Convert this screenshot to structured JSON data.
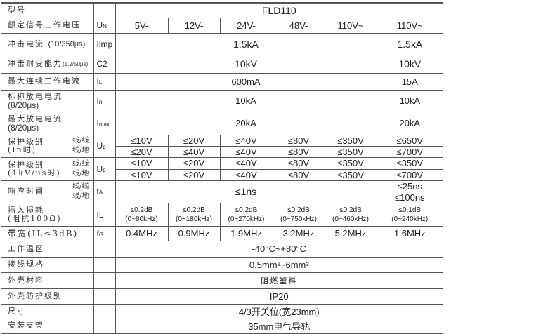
{
  "model": {
    "label": "型号",
    "value": "FLD110"
  },
  "un": {
    "label": "额定信号工作电压",
    "sym": "U",
    "sub": "N",
    "values": [
      "5V-",
      "12V-",
      "24V-",
      "48V-",
      "110V~",
      "110V~"
    ]
  },
  "iimp": {
    "label": "冲击电流",
    "cond": "(10/350μs)",
    "sym": "Iimp",
    "values": [
      "1.5kA",
      "1.5kA"
    ]
  },
  "c2": {
    "label": "冲击耐受能力",
    "cond": "(1.2/50μs)",
    "sym": "C2",
    "values": [
      "10kV",
      "10kV"
    ]
  },
  "il": {
    "label": "最大连续工作电流",
    "sym": "I",
    "sub": "L",
    "values": [
      "600mA",
      "15A"
    ]
  },
  "in": {
    "label": "标称放电电流",
    "cond": "(8/20μs)",
    "sym": "I",
    "sub": "n",
    "values": [
      "10kA",
      "10kA"
    ]
  },
  "imax": {
    "label": "最大放电电流",
    "cond": "(8/20μs)",
    "sym": "I",
    "sub": "max",
    "values": [
      "20kA",
      "20kA"
    ]
  },
  "up1": {
    "label": "保护级别",
    "cond": "(In时)",
    "side": [
      "线/线",
      "线/地"
    ],
    "sym": "U",
    "sub": "p",
    "ll": [
      "≤10V",
      "≤20V",
      "≤40V",
      "≤80V",
      "≤350V",
      "≤650V"
    ],
    "lg": [
      "≤20V",
      "≤40V",
      "≤40V",
      "≤80V",
      "≤350V",
      "≤700V"
    ]
  },
  "up2": {
    "label": "保护级别",
    "cond": "(1kV/μs时)",
    "side": [
      "线/线",
      "线/地"
    ],
    "sym": "U",
    "sub": "p",
    "ll": [
      "≤10V",
      "≤20V",
      "≤40V",
      "≤80V",
      "≤350V",
      "≤350V"
    ],
    "lg": [
      "≤10V",
      "≤20V",
      "≤40V",
      "≤80V",
      "≤350V",
      "≤700V"
    ]
  },
  "ta": {
    "label": "响应时间",
    "side": [
      "线/线",
      "线/地"
    ],
    "sym": "t",
    "sub": "A",
    "value": "≤1ns",
    "last": [
      "≤25ns",
      "≤100ns"
    ]
  },
  "ins": {
    "label": "插入损耗",
    "cond": "(阻抗100Ω)",
    "sym": "IL",
    "values": [
      [
        "≤0.2dB",
        "(0~80kHz)"
      ],
      [
        "≤0.2dB",
        "(0~180kHz)"
      ],
      [
        "≤0.2dB",
        "(0~270kHz)"
      ],
      [
        "≤0.2dB",
        "(0~750kHz)"
      ],
      [
        "≤0.2dB",
        "(0~460kHz)"
      ],
      [
        "≤0.1dB",
        "(0~240kHz)"
      ]
    ]
  },
  "bw": {
    "label": "带宽(IL≤3dB)",
    "sym": "f",
    "sub": "G",
    "values": [
      "0.4MHz",
      "0.9MHz",
      "1.9MHz",
      "3.2MHz",
      "5.2MHz",
      "1.6MHz"
    ]
  },
  "temp": {
    "label": "工作温区",
    "value": "-40°C~+80°C"
  },
  "wire": {
    "label": "接线规格",
    "value": "0.5mm²~6mm²"
  },
  "mat": {
    "label": "外壳材料",
    "value": "阻燃塑料"
  },
  "ip": {
    "label": "外壳防护级别",
    "value": "IP20"
  },
  "size": {
    "label": "尺寸",
    "value": "4/3开关位(宽23mm)"
  },
  "mount": {
    "label": "安装支架",
    "value": "35mm电气导轨"
  }
}
